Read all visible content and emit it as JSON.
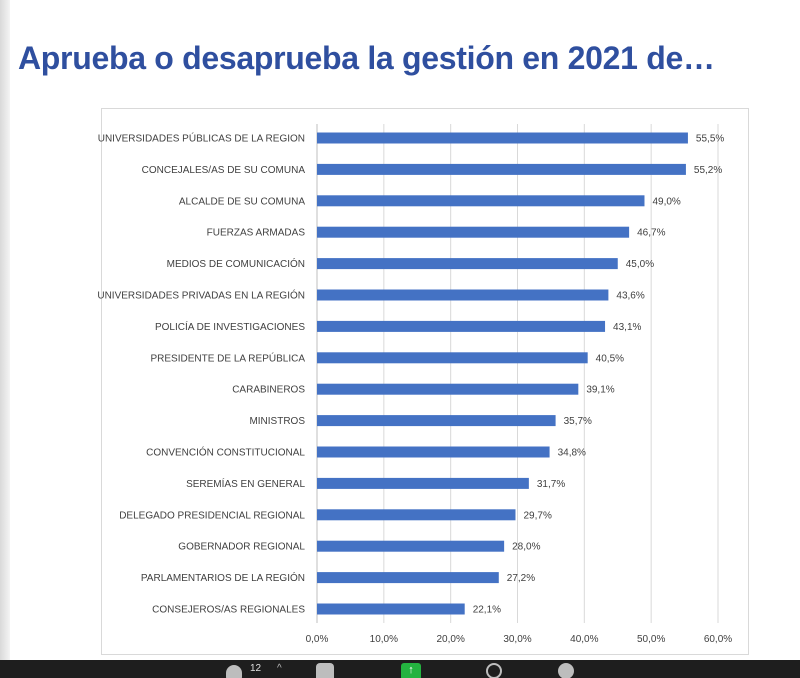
{
  "slide": {
    "title": "Aprueba o desaprueba la gestión en 2021 de…"
  },
  "chart_data": {
    "type": "bar",
    "orientation": "horizontal",
    "title": "Aprueba o desaprueba la gestión en 2021 de…",
    "xlabel": "",
    "ylabel": "",
    "xlim": [
      0,
      60
    ],
    "x_ticks": [
      0,
      10,
      20,
      30,
      40,
      50,
      60
    ],
    "x_tick_labels": [
      "0,0%",
      "10,0%",
      "20,0%",
      "30,0%",
      "40,0%",
      "50,0%",
      "60,0%"
    ],
    "grid": true,
    "legend": "none",
    "bar_color": "#4472c4",
    "categories": [
      "UNIVERSIDADES PÚBLICAS DE LA REGION",
      "CONCEJALES/AS DE SU COMUNA",
      "ALCALDE DE SU COMUNA",
      "FUERZAS ARMADAS",
      "MEDIOS DE COMUNICACIÓN",
      "UNIVERSIDADES PRIVADAS EN LA REGIÓN",
      "POLICÍA DE INVESTIGACIONES",
      "PRESIDENTE DE LA REPÚBLICA",
      "CARABINEROS",
      "MINISTROS",
      "CONVENCIÓN CONSTITUCIONAL",
      "SEREMÍAS EN GENERAL",
      "DELEGADO PRESIDENCIAL REGIONAL",
      "GOBERNADOR REGIONAL",
      "PARLAMENTARIOS DE LA REGIÓN",
      "CONSEJEROS/AS REGIONALES"
    ],
    "values": [
      55.5,
      55.2,
      49.0,
      46.7,
      45.0,
      43.6,
      43.1,
      40.5,
      39.1,
      35.7,
      34.8,
      31.7,
      29.7,
      28.0,
      27.2,
      22.1
    ],
    "value_labels": [
      "55,5%",
      "55,2%",
      "49,0%",
      "46,7%",
      "45,0%",
      "43,6%",
      "43,1%",
      "40,5%",
      "39,1%",
      "35,7%",
      "34,8%",
      "31,7%",
      "29,7%",
      "28,0%",
      "27,2%",
      "22,1%"
    ]
  },
  "taskbar": {
    "participants_count": "12",
    "caret": "^",
    "share_glyph": "↑",
    "icons": [
      "participants-icon",
      "chevron-up-icon",
      "chat-icon",
      "share-screen-icon",
      "record-icon",
      "reactions-icon"
    ]
  }
}
